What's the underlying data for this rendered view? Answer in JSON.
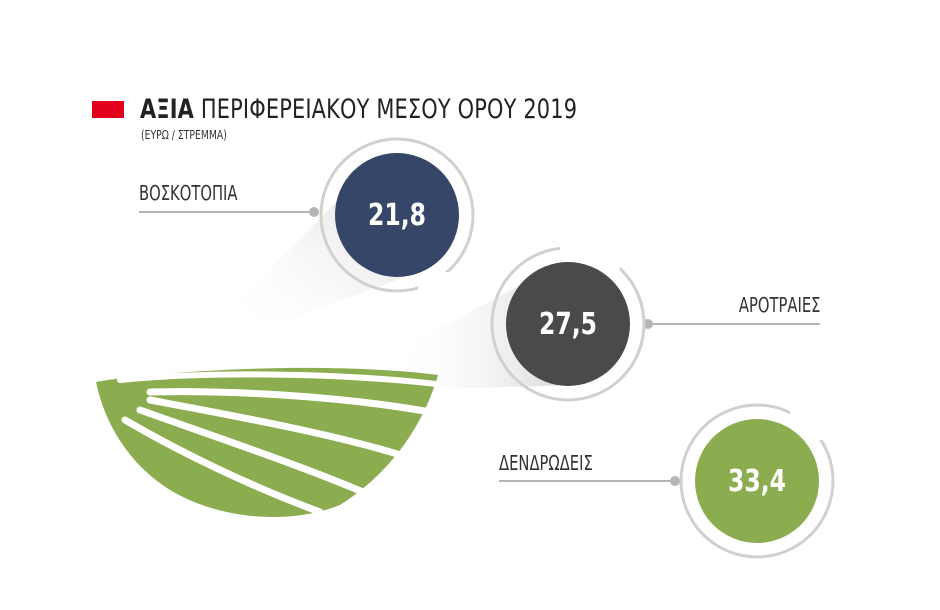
{
  "header": {
    "title_bold": "ΑΞΙΑ",
    "title_rest": "ΠΕΡΙΦΕΡΕΙΑΚΟΥ ΜΕΣΟΥ ΟΡΟΥ 2019",
    "subtitle": "(ΕΥΡΩ / ΣΤΡΕΜΜΑ)",
    "accent_color": "#e3001b"
  },
  "chart_data": {
    "type": "bar",
    "title": "ΑΞΙΑ ΠΕΡΙΦΕΡΕΙΑΚΟΥ ΜΕΣΟΥ ΟΡΟΥ 2019",
    "subtitle": "(ΕΥΡΩ / ΣΤΡΕΜΜΑ)",
    "categories": [
      "ΒΟΣΚΟΤΟΠΙΑ",
      "ΑΡΟΤΡΑΙΕΣ",
      "ΔΕΝΔΡΩΔΕΙΣ"
    ],
    "values": [
      21.8,
      27.5,
      33.4
    ],
    "value_labels": [
      "21,8",
      "27,5",
      "33,4"
    ],
    "colors": [
      "#354669",
      "#4a4a4c",
      "#8cad4f"
    ]
  },
  "illustration": {
    "icon": "field-icon",
    "color": "#8cad4f"
  }
}
